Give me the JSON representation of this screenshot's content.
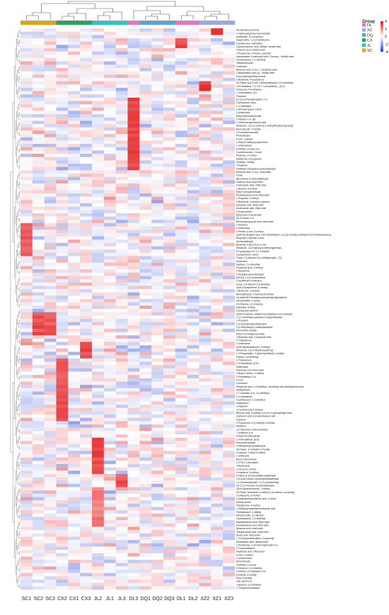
{
  "chart_data": {
    "type": "heatmap",
    "columns": [
      "SC1",
      "SC2",
      "SC3",
      "CX2",
      "CX1",
      "CX3",
      "JL2",
      "JL1",
      "JL3",
      "DL3",
      "DQ1",
      "DQ2",
      "DQ3",
      "DL1",
      "DL2",
      "XZ2",
      "XZ1",
      "XZ3"
    ],
    "column_groups": [
      "SC",
      "SC",
      "SC",
      "CX",
      "CX",
      "CX",
      "JL",
      "JL",
      "JL",
      "DL",
      "DQ",
      "DQ",
      "DQ",
      "DL",
      "DL",
      "XZ",
      "XZ",
      "XZ"
    ],
    "legend": {
      "title": "Group",
      "position": "top-right",
      "groups": [
        {
          "name": "DL",
          "color": "#e377c2"
        },
        {
          "name": "XZ",
          "color": "#9da8e2"
        },
        {
          "name": "DQ",
          "color": "#5da2d8"
        },
        {
          "name": "CX",
          "color": "#2ca35a"
        },
        {
          "name": "JL",
          "color": "#35c4c4"
        },
        {
          "name": "SC",
          "color": "#d9a520"
        }
      ],
      "scale_ticks": [
        4,
        2,
        0,
        -2,
        -4
      ],
      "scale_range": [
        -4,
        4
      ],
      "color_high": "#e41a1c",
      "color_mid": "#ffffff",
      "color_low": "#1f3fd6"
    },
    "rows": [
      "Dicarbonyl (cis-trans)",
      "2-Hydroxyarymine monoacetate",
      "Acetamide, N-2-propenyl-",
      "Isoquinoline, 1,2,3,4-tetrahydro-",
      "Cyclodecane, methylene-",
      "Cyclohexanone, acid, diethyl, methyl ester",
      "Octanoic acid, methyl ester",
      "1-Propanone, 2-bromo-1-phenyl-",
      "Adamantane-1-carboxylic acid, 3-bromo-, methyl ester",
      "Cyclopropane, 1,1-dimethyl-",
      "Tetrahydrofuran",
      "Undecane",
      "Butanoic acid, 3-oxo-, 2-propenyl ester",
      "2-Butenedioic acid (Z)-, dibutyl ester",
      "Furyl hydroxymethyl ketone",
      "2-Butanone, 4-(acetyloxy)-",
      "2H-Pyran-3(4H)-one, 6-ethenyldihydro-2,2,6-trimethyl-",
      "3,5-Octadiene, 2,2,4,5,7,7-hexamethyl-, (E,Z)-",
      "Undecane, 5-methylene-",
      "1,3-Nonadiene, (E)-",
      "Propanal",
      "(Z,Z)-6,9-Pentadecadien-1-ol",
      "Cyclooctane, ethyl-",
      "1,3-Oxathiane",
      "2-Aminopropane-1-thiol",
      "2-Undecanol",
      "Ethyl methanesulfonate",
      "2-Hepten-1-ol, (E)-",
      "4-Oxohexenopentanoic acid",
      "Ethanone, 1-[1-(1-hydroxy-1-methylethyl)cyclopropyl]-",
      "Benzoxazole, 2-methyl-",
      "2-Furancarboxamide",
      "Pentadecane",
      "Furan, 2-pentyl-",
      "1-Ethyl-5-methylcyclopentene",
      "1-Undecanone",
      "5-Methyl-1-hexyn-3-ol",
      "Cyclohexanone, 2-butyl-",
      "Propanal, 2-methyl-",
      "Methyl-tho-2-propanone",
      "Pyrazine, methyl-",
      "Thiophene",
      "5-Methyl-2-thiophenecarboxaldehyde",
      "Butanoic acid, 2-oxo-, ethyl ester",
      "Furan",
      "Benzofuran-2-carboxaldehyde",
      "Octanoic acid, ethyl ester",
      "Dodecanoic acid, ethyl ester",
      "1-Butanol, 3-methyl-",
      "Ethyl 9-hexadecenoate",
      "Pentadecanoic acid, ethyl ester",
      "1-Propanol, 2-methyl-",
      "2-Butanone, 3-methyl-1-phenyl-",
      "Decanoic acid, ethyl ester",
      "Undecanoic acid, ethyl ester",
      "2-Dodecanone",
      "Ethyl trans-4-decenoate",
      "(Z)-4-Decen-1-ol",
      "Benzenepropanoic acid, ethyl ester",
      "1-Nonanol",
      "2-Undecanol",
      "1-Penten-3-one, 5-methyl-",
      "(3aR,4R,8S,8aS)-3a,4,7,8a-Tetramethyl-1,2,3,3a,4,5,8,8a-octahydro-4,8-methanoazulene",
      "Bicyclo[3.1.0]hexan-3-one",
      "Succinaldehyde",
      "Bicyclo[2.2.2]oct-5-en-2-one",
      "Ethanone, 1-(2-hydroxy-5-methoxyphenyl)-",
      "5-Cyclopropyl-1H-1,2,4-triazole",
      "Cyclopentane, nonyl-",
      "Furan, 2,3-dihydro-4-(1-methylpropyl)-, (S)-",
      "Dodecane",
      "Heptane, 2,4-dimethyl-",
      "Propanoic acid, 2-methyl-",
      "2-Nonanone",
      "2-Pyridinecarboxaldehyde",
      "(3E,5Z)-1,3,5-Undecatriene",
      "2-ISOPROPYLPHENOL",
      "Furan, 2,5-dihydro-2,5-dimethyl-",
      "3(2H)-Pyridazinone, 6-methyl-",
      "1-Butanone, 1-phenyl-",
      "Benzaldehyde, 2-hydroxy-6-methyl-",
      "2a,4a,8a,8b-Tetrahydrocyclopenta[cd]pentalene",
      "Hexanenitrile, 2-acetyl-",
      "3,5-Dianino-1,2,4-triazole",
      "Quinoline, 8-ethyl-",
      "Cyclopropyl carbinol",
      "3(2H)-Furanone, dihydro-5,5-dimethyl-4-(3-oxobutyl)-",
      "1-(1,2-Dimethyl-cyclopent-2-enyl)-ethanone",
      "1-Propanol",
      "2,5'-Isopherediaceltaldehyde",
      "2-(2-Ethylhexyl)-2-methylazetidine",
      "Ammonium acetate",
      "Ethyl 3-(3-furyl)propenoate",
      "2-Butenoic acid, 2-propenyl ester",
      "2-Tridecanone",
      "1-Undecanol",
      "3(2H)-Benzofuranone, 3-methyl-",
      "Ethanone, 1-(2,4-dihydroxyphenyl)-",
      "1,3-Propanediol, 2-(hydroxymethyl)-2-methyl-",
      "Octene, 4,5-dimethyl-",
      "1-Tridecanone",
      "2,4-Octadienal, (E,E)-",
      "Dodecanal",
      "Nonanoic acid, ethyl ester",
      "3-Butyl-2-amino, 2-methyl",
      "2-Pentadecyn-1-ol",
      "a-Furil",
      "4-Nonanol",
      "Propanoic acid, 2,2-dimethyl-, anhydride with diethylborinic acid",
      "Methanthane",
      "1,7-Octadien-3-ol, 2,6-dimethyl-",
      "2,4-Octadienal",
      "Cyclohexanol, 2,3-dimethyl-",
      "Isoamarinol",
      "1-Heptene",
      "3-Cyclohexene-1-ethanol",
      "Benzoic acid, 5-methyl-2-(2-oxo-2-phenylethyl) ester",
      "Carbamic acid, monoammonium salt",
      "Isoserine",
      "2-Propanone, 6-(2-furanyl)-4-methyl-",
      "Methenyl",
      "1H-Pyrazole-1-carboxamidine",
      "7-Undecen-4-ol",
      "Octanyl isothiocyanate",
      "2,4-Hexadienal, (E,E)-",
      "Ethyl tridecanoate",
      "3-Methylthiopropylaldehyde",
      "2H-Pyran, 3,4-dihydro-4-methyl-",
      "Crotonine, 4-ethyl-3-methyl-",
      "1-Undecyne",
      "Ethyl-2-benzofuran",
      "2,2'-Bi-1,3-dioxolane",
      "Octadecanal",
      "1-Hexanol, 2-ethyl-",
      "4-Heptanol, 3-methyl-",
      "4-Hydroxy-3,5-dimethylbenzaldehyde",
      "3,5-di-tert-Butyl-4-hydroxybenzaldehyde",
      "1,2-Cyclobutanediol, 2,2,3,4-tetramethyl-",
      "1H-1,2,3-Triazole-4-carboxaldehyde",
      "3(2H)-Benzofuranone, 7-methyl-",
      "2H-Pyran, tetrahydro-4-methyl-2-(2-methyl-1-propenyl)-",
      "3-Undecene, 6-methyl-",
      "Cyclopropanepentanoic acid, 2-hexyl-",
      "Diethyl acetal",
      "Tetradecane, 4-methyl-",
      "1-Methylcyclopentanecarboxylic acid",
      "Pentadecane, 2-methyl-",
      "Dihydroorotic, 2,3-dihydro-",
      "Cycloheptene, 1,2-dimethyl-",
      "Heptadecanoic acid, ethyl ester",
      "Hexadecanoic acid, ethyl ester",
      "Butanoic acid, ethyl ester",
      "Tetradecanoic acid, ethyl ester",
      "Acetic acid, ethyl ester",
      "1,3-Cyclopentanedione, 2-isopentyl-",
      "Ethanedioic acid, diethyl ester",
      "1-Pentanone, 1-(4-hydroxyphenyl)-4-yl-",
      "2-Furanmethanol",
      "Heptanoic acid, ethyl ester",
      "Furan, 2-methyl-",
      "2-Undecanone",
      "Ethyl formate",
      "3-Methyl-1-nonene",
      "3-Hexanol, 2,4-dimethyl-",
      "2-Methyl-1,5-heptadien-4-ol",
      "Pentanal, 3-methyl-",
      "Ethyl 3-furoate",
      "Lilac alcohol D",
      "1-Butanol, 2,3-dimethyl-",
      "1-Thiophenemethanol"
    ],
    "hotspots": [
      {
        "rows": [
          0,
          1
        ],
        "col": "XZ1",
        "value": 3.8
      },
      {
        "rows": [
          3,
          5
        ],
        "col": "DL1",
        "value": 3.6
      },
      {
        "rows": [
          16,
          18
        ],
        "col": "XZ2",
        "value": 3.9
      },
      {
        "rows": [
          21,
          42
        ],
        "col": "DL3",
        "value": 3.6
      },
      {
        "rows": [
          59,
          68
        ],
        "col": "SC1",
        "value": 3.2
      },
      {
        "rows": [
          86,
          92
        ],
        "col": "SC2",
        "value": 3.5
      },
      {
        "rows": [
          86,
          92
        ],
        "col": "SC3",
        "value": 3.3
      },
      {
        "rows": [
          95,
          99
        ],
        "col": "CX3",
        "value": 3.5
      },
      {
        "rows": [
          100,
          118
        ],
        "col": "CX2",
        "value": 3.4
      },
      {
        "rows": [
          124,
          134
        ],
        "col": "JL2",
        "value": 3.6
      },
      {
        "rows": [
          135,
          138
        ],
        "col": "JL3",
        "value": 3.4
      },
      {
        "rows": [
          139,
          150
        ],
        "col": "JL2",
        "value": 2.6
      }
    ]
  }
}
